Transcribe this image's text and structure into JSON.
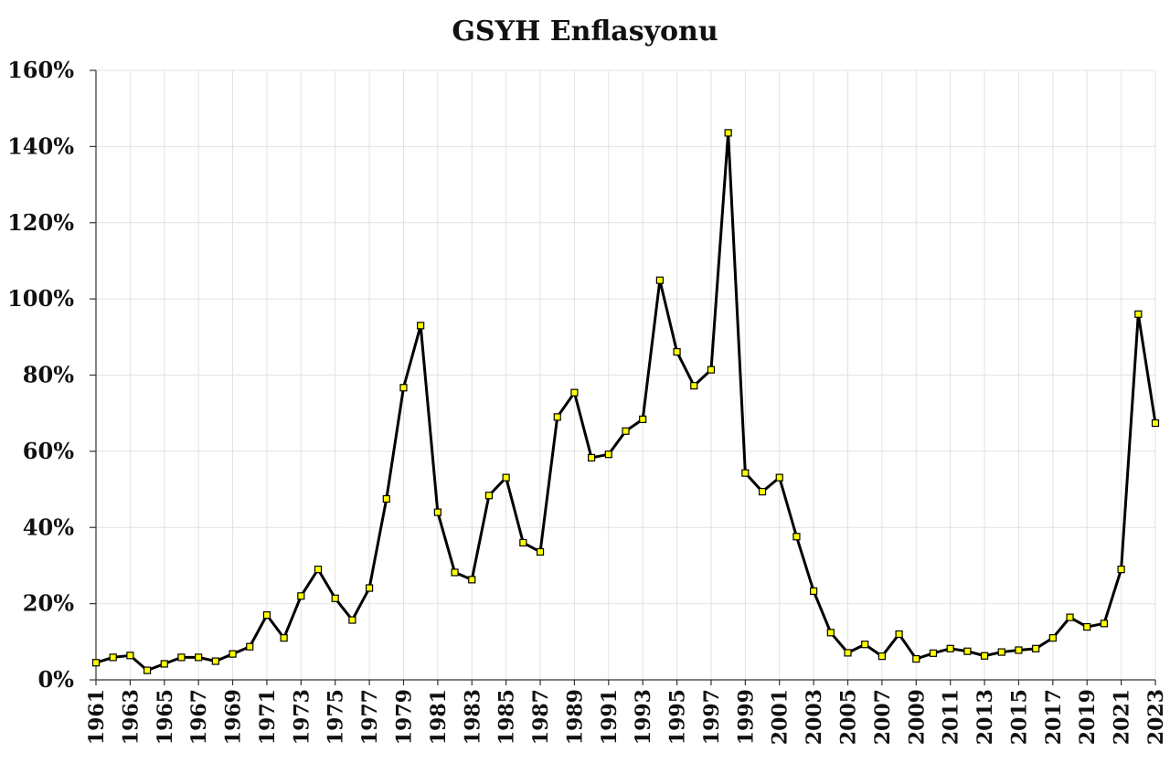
{
  "chart_data": {
    "type": "line",
    "title": "GSYH Enflasyonu",
    "xlabel": "",
    "ylabel": "",
    "grid": true,
    "ylim": [
      0,
      160
    ],
    "y_ticks": [
      0,
      20,
      40,
      60,
      80,
      100,
      120,
      140,
      160
    ],
    "y_tick_suffix": "%",
    "x": [
      1961,
      1962,
      1963,
      1964,
      1965,
      1966,
      1967,
      1968,
      1969,
      1970,
      1971,
      1972,
      1973,
      1974,
      1975,
      1976,
      1977,
      1978,
      1979,
      1980,
      1981,
      1982,
      1983,
      1984,
      1985,
      1986,
      1987,
      1988,
      1989,
      1990,
      1991,
      1992,
      1993,
      1994,
      1995,
      1996,
      1997,
      1998,
      1999,
      2000,
      2001,
      2002,
      2003,
      2004,
      2005,
      2006,
      2007,
      2008,
      2009,
      2010,
      2011,
      2012,
      2013,
      2014,
      2015,
      2016,
      2017,
      2018,
      2019,
      2020,
      2021,
      2022,
      2023
    ],
    "x_tick_labels": [
      "1961",
      "1963",
      "1965",
      "1967",
      "1969",
      "1971",
      "1973",
      "1975",
      "1977",
      "1979",
      "1981",
      "1983",
      "1985",
      "1987",
      "1989",
      "1991",
      "1993",
      "1995",
      "1997",
      "1999",
      "2001",
      "2003",
      "2005",
      "2007",
      "2009",
      "2011",
      "2013",
      "2015",
      "2017",
      "2019",
      "2021",
      "2023"
    ],
    "series": [
      {
        "values": [
          4.5,
          5.9,
          6.4,
          2.5,
          4.2,
          5.9,
          5.9,
          4.9,
          6.8,
          8.7,
          17.0,
          11.0,
          22.0,
          29.0,
          21.4,
          15.7,
          24.1,
          47.5,
          76.7,
          93.0,
          44.0,
          28.2,
          26.3,
          48.4,
          53.1,
          36.0,
          33.6,
          69.0,
          75.4,
          58.3,
          59.2,
          65.3,
          68.4,
          104.9,
          86.1,
          77.2,
          81.4,
          143.6,
          54.3,
          49.4,
          53.1,
          37.6,
          23.3,
          12.4,
          7.1,
          9.3,
          6.2,
          12.0,
          5.5,
          7.0,
          8.2,
          7.5,
          6.3,
          7.3,
          7.8,
          8.2,
          11.0,
          16.4,
          13.9,
          14.8,
          29.0,
          96.0,
          67.4
        ],
        "color": "#000000",
        "marker_color": "#ffff00"
      }
    ]
  }
}
